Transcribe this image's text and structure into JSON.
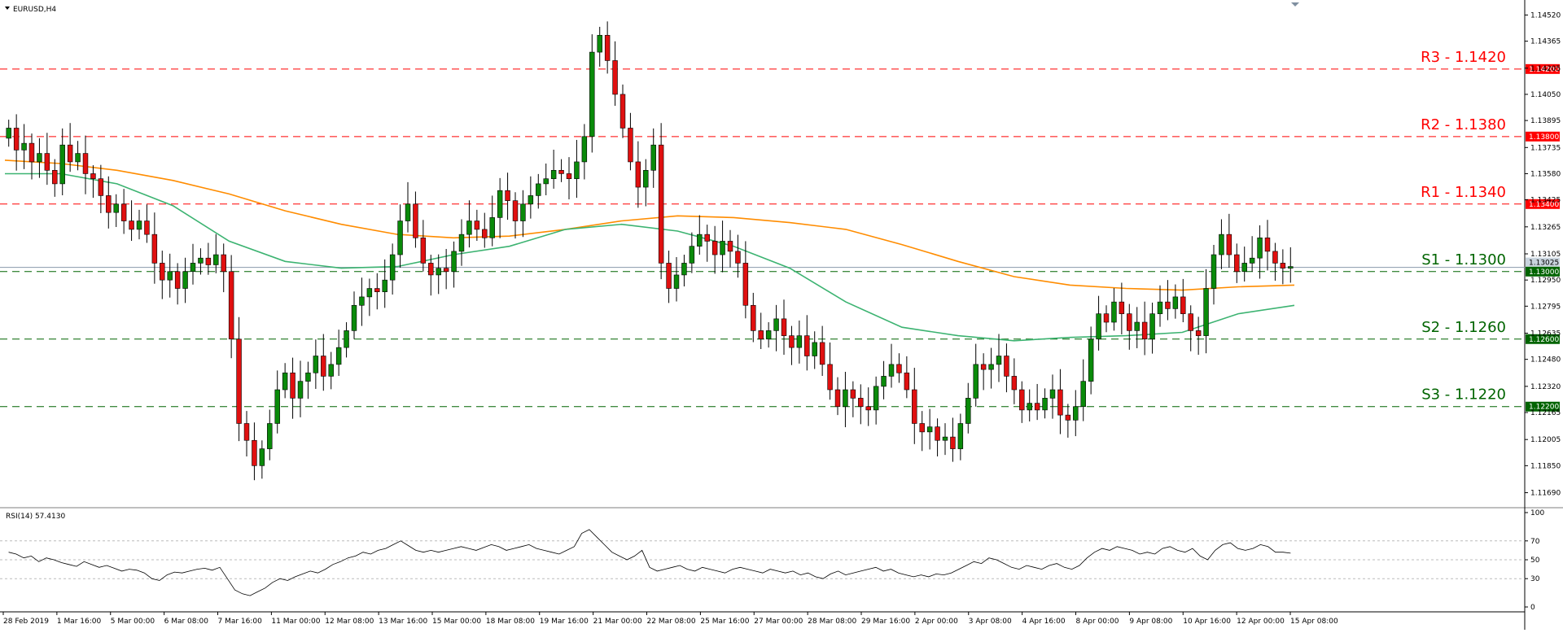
{
  "symbol_label": "EURUSD,H4",
  "rsi_label": "RSI(14) 57.4130",
  "colors": {
    "bull": "#0a8a0a",
    "bear": "#e01010",
    "ma_orange": "#ff8c00",
    "ma_green": "#3cb371",
    "resistance": "#ff0000",
    "support": "#006400",
    "rsi_line": "#000000",
    "price_line": "#8a9aab"
  },
  "chart_data": [
    {
      "type": "candlestick",
      "title": "EURUSD,H4",
      "ylim": [
        1.1163,
        1.1458
      ],
      "y_ticks": [
        "1.14520",
        "1.14365",
        "1.14205",
        "1.14050",
        "1.13895",
        "1.13735",
        "1.13580",
        "1.13425",
        "1.13265",
        "1.13105",
        "1.12950",
        "1.12795",
        "1.12635",
        "1.12480",
        "1.12320",
        "1.12165",
        "1.12005",
        "1.11850",
        "1.11690"
      ],
      "x_ticks": [
        "28 Feb 2019",
        "1 Mar 16:00",
        "5 Mar 00:00",
        "6 Mar 08:00",
        "7 Mar 16:00",
        "11 Mar 00:00",
        "12 Mar 08:00",
        "13 Mar 16:00",
        "15 Mar 00:00",
        "18 Mar 08:00",
        "19 Mar 16:00",
        "21 Mar 00:00",
        "22 Mar 08:00",
        "25 Mar 16:00",
        "27 Mar 00:00",
        "28 Mar 08:00",
        "29 Mar 16:00",
        "2 Apr 00:00",
        "3 Apr 08:00",
        "4 Apr 16:00",
        "8 Apr 00:00",
        "9 Apr 08:00",
        "10 Apr 16:00",
        "12 Apr 00:00",
        "15 Apr 08:00"
      ],
      "current_price": "1.13025",
      "levels": [
        {
          "label": "R3 - 1.1420",
          "value": 1.142,
          "price_tag": "1.14200",
          "kind": "resistance"
        },
        {
          "label": "R2 - 1.1380",
          "value": 1.138,
          "price_tag": "1.13800",
          "kind": "resistance"
        },
        {
          "label": "R1 - 1.1340",
          "value": 1.134,
          "price_tag": "1.13400",
          "kind": "resistance"
        },
        {
          "label": "S1 - 1.1300",
          "value": 1.13,
          "price_tag": "1.13000",
          "kind": "support"
        },
        {
          "label": "S2 - 1.1260",
          "value": 1.126,
          "price_tag": "1.12600",
          "kind": "support"
        },
        {
          "label": "S3 - 1.1220",
          "value": 1.122,
          "price_tag": "1.12200",
          "kind": "support"
        }
      ],
      "close_path": [
        1.1385,
        1.1372,
        1.1376,
        1.1365,
        1.137,
        1.136,
        1.1352,
        1.1375,
        1.1365,
        1.137,
        1.1358,
        1.1355,
        1.1345,
        1.1335,
        1.134,
        1.133,
        1.1325,
        1.133,
        1.1322,
        1.1305,
        1.1295,
        1.13,
        1.129,
        1.13,
        1.1305,
        1.1308,
        1.1304,
        1.131,
        1.13,
        1.126,
        1.121,
        1.12,
        1.1185,
        1.1195,
        1.121,
        1.123,
        1.124,
        1.1225,
        1.1235,
        1.124,
        1.125,
        1.1238,
        1.1245,
        1.1255,
        1.1265,
        1.128,
        1.1285,
        1.129,
        1.1288,
        1.1295,
        1.131,
        1.133,
        1.134,
        1.132,
        1.1305,
        1.1298,
        1.1302,
        1.13,
        1.1312,
        1.1322,
        1.133,
        1.1325,
        1.132,
        1.1332,
        1.1348,
        1.1342,
        1.133,
        1.134,
        1.1345,
        1.1352,
        1.1355,
        1.136,
        1.1358,
        1.1355,
        1.1365,
        1.138,
        1.143,
        1.144,
        1.1425,
        1.1405,
        1.1385,
        1.1365,
        1.135,
        1.136,
        1.1375,
        1.1305,
        1.129,
        1.1298,
        1.1305,
        1.1315,
        1.1322,
        1.1318,
        1.131,
        1.1318,
        1.1312,
        1.1305,
        1.128,
        1.1265,
        1.126,
        1.1265,
        1.1272,
        1.1262,
        1.1255,
        1.1262,
        1.125,
        1.1258,
        1.1245,
        1.123,
        1.122,
        1.123,
        1.1225,
        1.122,
        1.1218,
        1.1232,
        1.1238,
        1.1245,
        1.124,
        1.123,
        1.121,
        1.1205,
        1.1208,
        1.12,
        1.1202,
        1.1195,
        1.121,
        1.1225,
        1.1245,
        1.1242,
        1.1245,
        1.125,
        1.1238,
        1.123,
        1.1218,
        1.1222,
        1.1218,
        1.1225,
        1.123,
        1.1215,
        1.1212,
        1.122,
        1.1235,
        1.126,
        1.1275,
        1.127,
        1.1282,
        1.1275,
        1.1265,
        1.127,
        1.126,
        1.1275,
        1.1282,
        1.1278,
        1.1285,
        1.1275,
        1.1265,
        1.1262,
        1.129,
        1.131,
        1.1322,
        1.131,
        1.13,
        1.1305,
        1.1308,
        1.132,
        1.1312,
        1.1305,
        1.1302,
        1.1303
      ],
      "moving_averages": [
        {
          "color_key": "ma_orange",
          "values": [
            1.1366,
            1.1364,
            1.136,
            1.1354,
            1.1346,
            1.1336,
            1.1328,
            1.1322,
            1.132,
            1.1321,
            1.1325,
            1.133,
            1.1333,
            1.1332,
            1.1329,
            1.1325,
            1.1316,
            1.1306,
            1.1297,
            1.1292,
            1.129,
            1.1289,
            1.1291,
            1.1292
          ]
        },
        {
          "color_key": "ma_green",
          "values": [
            1.1358,
            1.1358,
            1.1352,
            1.1339,
            1.1318,
            1.1306,
            1.1302,
            1.1303,
            1.131,
            1.1315,
            1.1325,
            1.1328,
            1.1324,
            1.1315,
            1.1302,
            1.1282,
            1.1267,
            1.1262,
            1.1259,
            1.1261,
            1.1262,
            1.1264,
            1.1275,
            1.128
          ]
        }
      ]
    },
    {
      "type": "line",
      "title": "RSI(14) 57.4130",
      "ylim": [
        0,
        100
      ],
      "y_ticks": [
        "100",
        "70",
        "50",
        "30",
        "0"
      ],
      "guide_levels": [
        70,
        50,
        30
      ],
      "values": [
        58,
        56,
        52,
        54,
        48,
        52,
        50,
        47,
        45,
        43,
        48,
        45,
        42,
        44,
        41,
        38,
        40,
        39,
        36,
        30,
        28,
        34,
        37,
        36,
        38,
        40,
        41,
        39,
        42,
        30,
        18,
        14,
        12,
        16,
        20,
        26,
        30,
        28,
        32,
        35,
        38,
        36,
        40,
        45,
        48,
        52,
        54,
        58,
        56,
        60,
        62,
        66,
        70,
        65,
        60,
        58,
        60,
        58,
        60,
        62,
        64,
        62,
        60,
        63,
        66,
        64,
        60,
        62,
        64,
        66,
        62,
        60,
        58,
        56,
        60,
        64,
        78,
        82,
        74,
        66,
        58,
        54,
        50,
        54,
        60,
        42,
        38,
        40,
        42,
        44,
        40,
        38,
        42,
        40,
        38,
        36,
        40,
        42,
        40,
        38,
        36,
        40,
        38,
        36,
        38,
        34,
        36,
        32,
        30,
        35,
        38,
        34,
        36,
        38,
        40,
        42,
        38,
        40,
        36,
        34,
        32,
        34,
        32,
        35,
        34,
        36,
        40,
        44,
        48,
        46,
        52,
        50,
        46,
        42,
        40,
        44,
        42,
        40,
        44,
        46,
        42,
        40,
        44,
        52,
        58,
        62,
        60,
        64,
        62,
        60,
        56,
        58,
        56,
        62,
        64,
        60,
        58,
        62,
        54,
        50,
        60,
        66,
        68,
        62,
        60,
        62,
        66,
        64,
        58,
        58,
        57
      ]
    }
  ]
}
